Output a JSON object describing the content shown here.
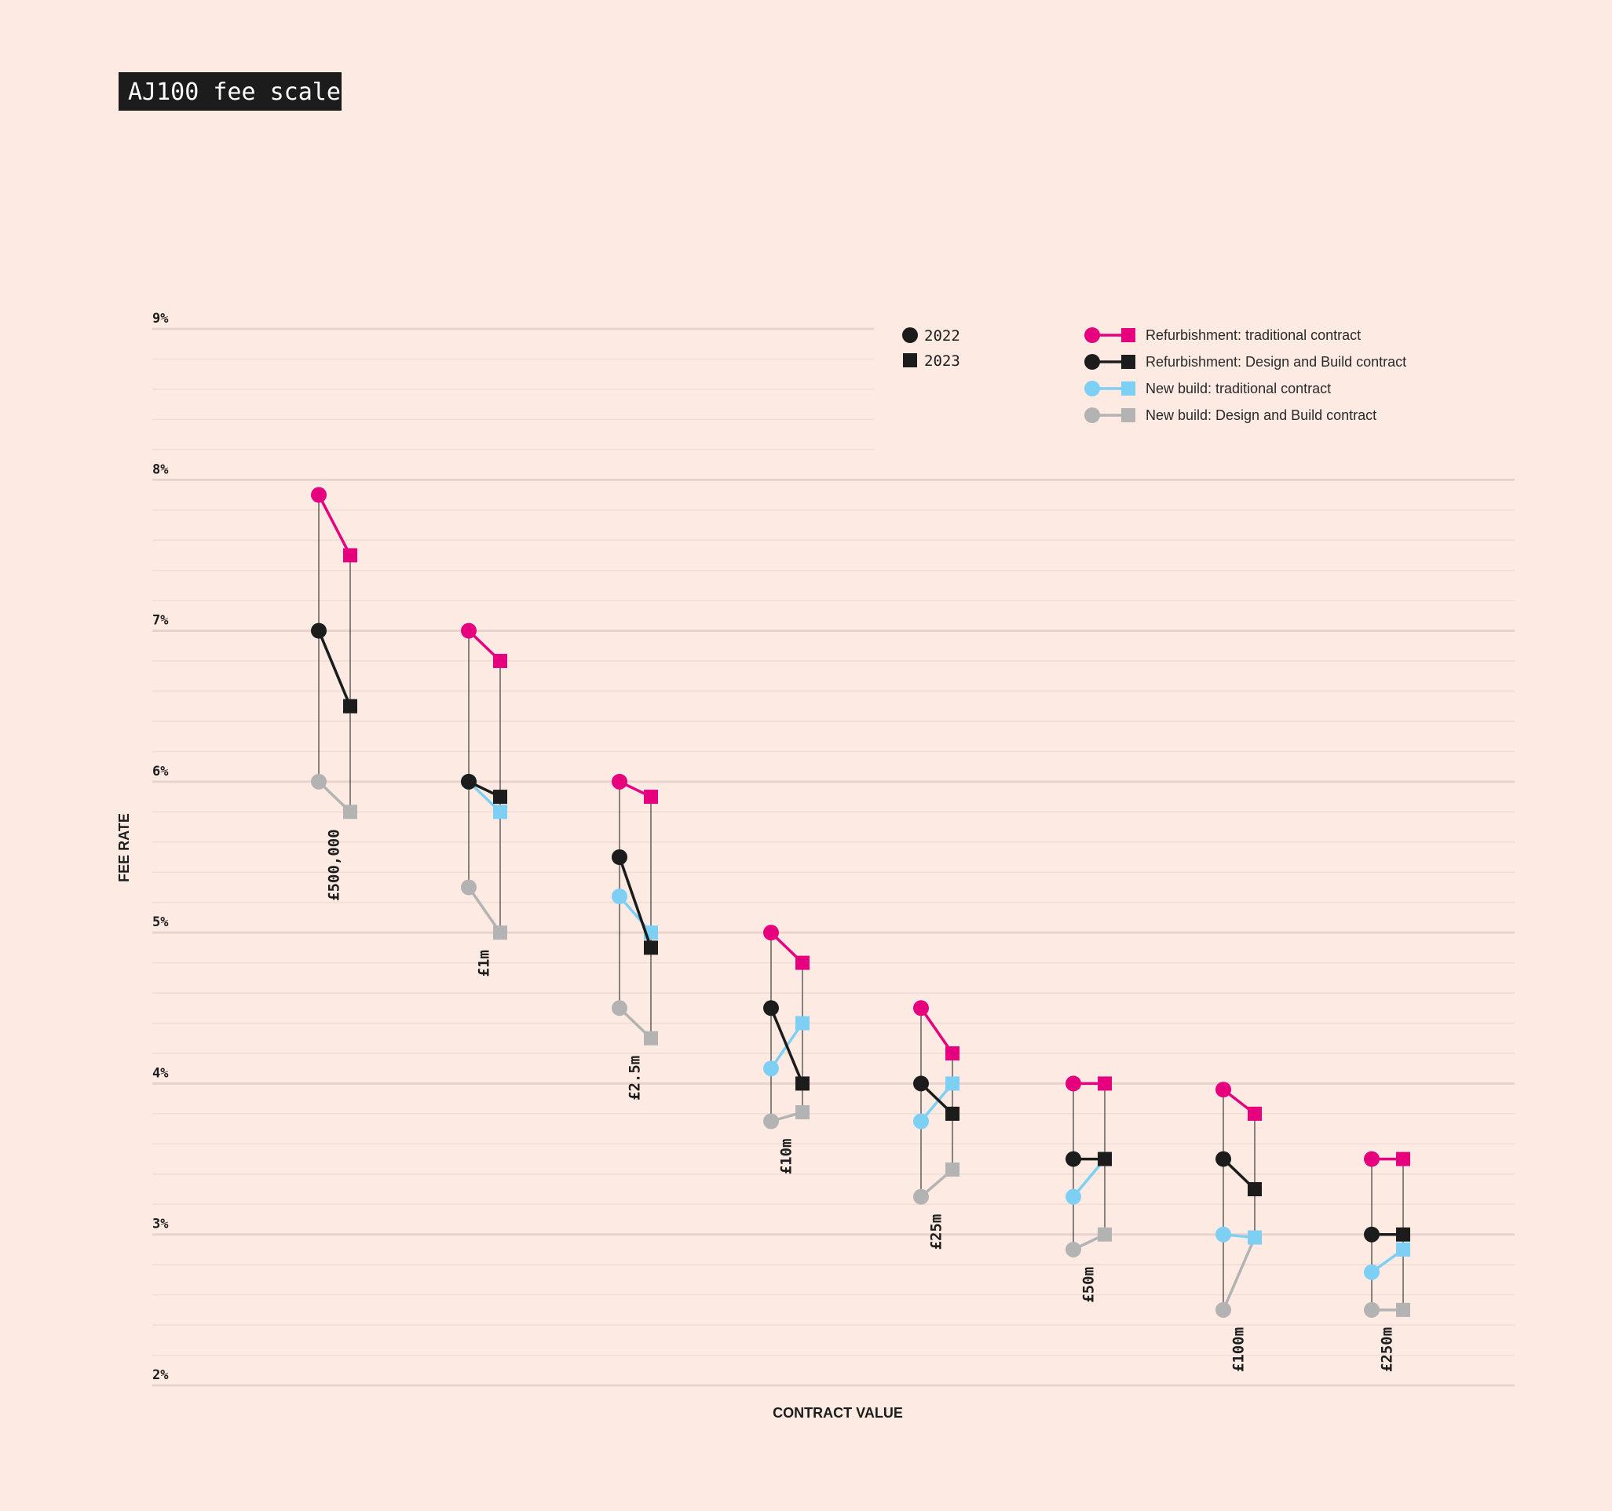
{
  "chart_data": {
    "type": "line",
    "title": "AJ100 fee scale",
    "xlabel": "CONTRACT VALUE",
    "ylabel": "FEE RATE",
    "ylim": [
      2,
      9
    ],
    "yticks": [
      "2%",
      "3%",
      "4%",
      "5%",
      "6%",
      "7%",
      "8%",
      "9%"
    ],
    "grid": true,
    "legend_position": "top-right",
    "year_legend": [
      {
        "marker": "circle",
        "label": "2022"
      },
      {
        "marker": "square",
        "label": "2023"
      }
    ],
    "categories": [
      "£500,000",
      "£1m",
      "£2.5m",
      "£10m",
      "£25m",
      "£50m",
      "£100m",
      "£250m"
    ],
    "series": [
      {
        "name": "Refurbishment: traditional contract",
        "color": "#e6007e",
        "values_2022": [
          7.9,
          7.0,
          6.0,
          5.0,
          4.5,
          4.0,
          3.96,
          3.5
        ],
        "values_2023": [
          7.5,
          6.8,
          5.9,
          4.8,
          4.2,
          4.0,
          3.8,
          3.5
        ]
      },
      {
        "name": "Refurbishment: Design and Build contract",
        "color": "#1c1c1c",
        "values_2022": [
          7.0,
          6.0,
          5.5,
          4.5,
          4.0,
          3.5,
          3.5,
          3.0
        ],
        "values_2023": [
          6.5,
          5.9,
          4.9,
          4.0,
          3.8,
          3.5,
          3.3,
          3.0
        ]
      },
      {
        "name": "New build: traditional contract",
        "color": "#7ecff4",
        "values_2022": [
          7.0,
          6.0,
          5.24,
          4.1,
          3.75,
          3.25,
          3.0,
          2.75
        ],
        "values_2023": [
          6.5,
          5.8,
          5.0,
          4.4,
          4.0,
          3.5,
          2.98,
          2.9
        ]
      },
      {
        "name": "New build: Design and Build contract",
        "color": "#b3b3b3",
        "values_2022": [
          6.0,
          5.3,
          4.5,
          3.75,
          3.25,
          2.9,
          2.5,
          2.5
        ],
        "values_2023": [
          5.8,
          5.0,
          4.3,
          3.81,
          3.43,
          3.0,
          2.98,
          2.5
        ]
      }
    ]
  }
}
